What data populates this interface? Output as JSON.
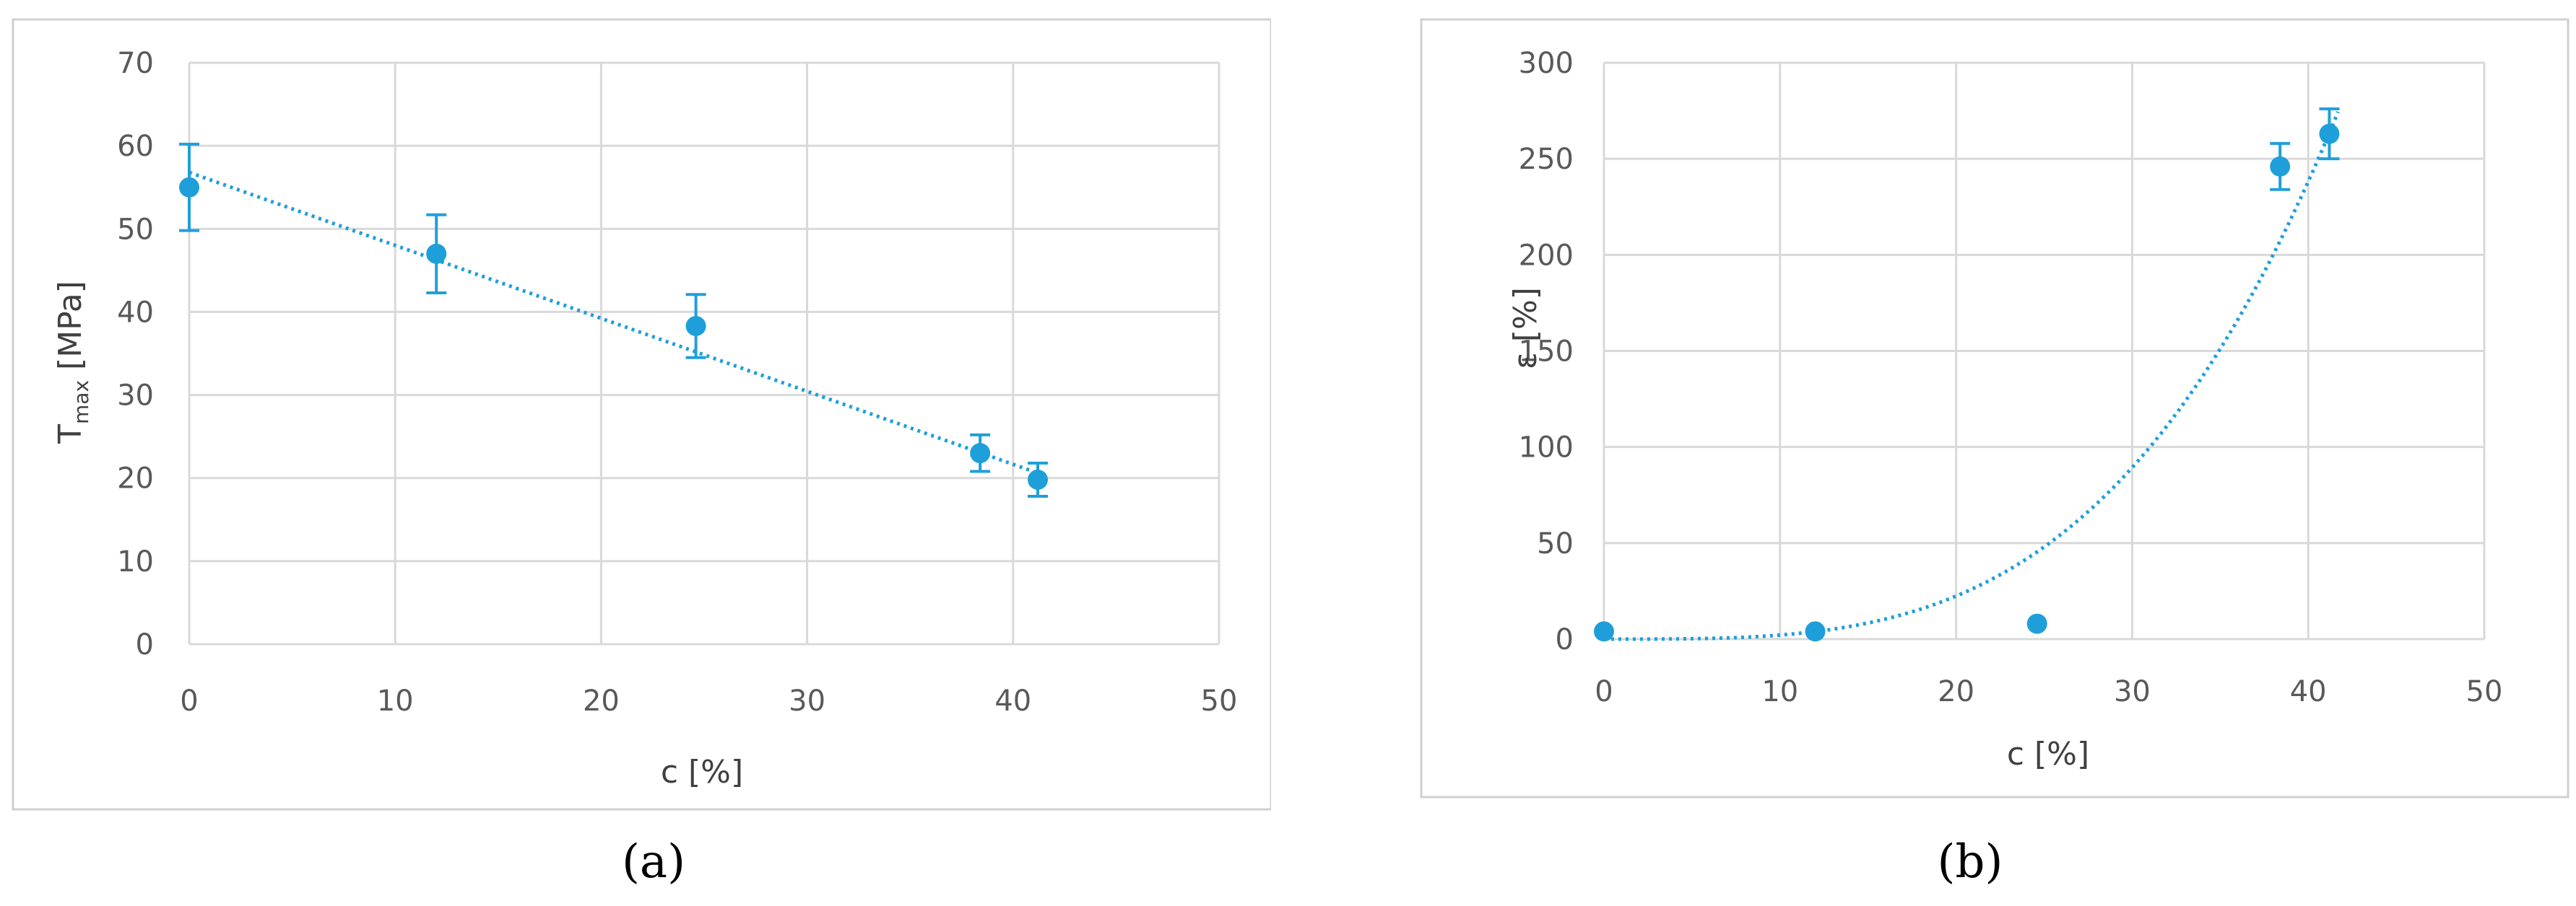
{
  "colors": {
    "series": "#1f9fd9",
    "grid": "#d9d9d9",
    "frame": "#d0d0d0",
    "text": "#595959"
  },
  "chart_data": [
    {
      "type": "scatter",
      "caption": "(a)",
      "xlabel": "c [%]",
      "ylabel_main": "T",
      "ylabel_sub": "max",
      "ylabel_unit": " [MPa]",
      "xlim": [
        0,
        50
      ],
      "ylim": [
        0,
        70
      ],
      "xticks": [
        "0",
        "10",
        "20",
        "30",
        "40",
        "50"
      ],
      "yticks": [
        "0",
        "10",
        "20",
        "30",
        "40",
        "50",
        "60",
        "70"
      ],
      "grid": true,
      "points": [
        {
          "x": 0,
          "y": 55,
          "err": 5.2
        },
        {
          "x": 12,
          "y": 47,
          "err": 4.7
        },
        {
          "x": 24.6,
          "y": 38.3,
          "err": 3.8
        },
        {
          "x": 38.4,
          "y": 23,
          "err": 2.2
        },
        {
          "x": 41.2,
          "y": 19.8,
          "err": 2
        }
      ],
      "trendline": {
        "kind": "linear",
        "x0": 0,
        "y0": 56.8,
        "x1": 41.2,
        "y1": 20.6
      }
    },
    {
      "type": "scatter",
      "caption": "(b)",
      "xlabel": "c [%]",
      "ylabel_main": "ε [%]",
      "ylabel_sub": "",
      "ylabel_unit": "",
      "xlim": [
        0,
        50
      ],
      "ylim": [
        0,
        300
      ],
      "xticks": [
        "0",
        "10",
        "20",
        "30",
        "40",
        "50"
      ],
      "yticks": [
        "0",
        "50",
        "100",
        "150",
        "200",
        "250",
        "300"
      ],
      "grid": true,
      "points": [
        {
          "x": 0,
          "y": 4,
          "err": 0
        },
        {
          "x": 12,
          "y": 4,
          "err": 0
        },
        {
          "x": 24.6,
          "y": 8,
          "err": 0
        },
        {
          "x": 38.4,
          "y": 246,
          "err": 12
        },
        {
          "x": 41.2,
          "y": 263,
          "err": 13
        }
      ],
      "trendline": {
        "kind": "power",
        "coef": 0.00082,
        "exp": 3.41,
        "xmax": 41.7
      }
    }
  ]
}
